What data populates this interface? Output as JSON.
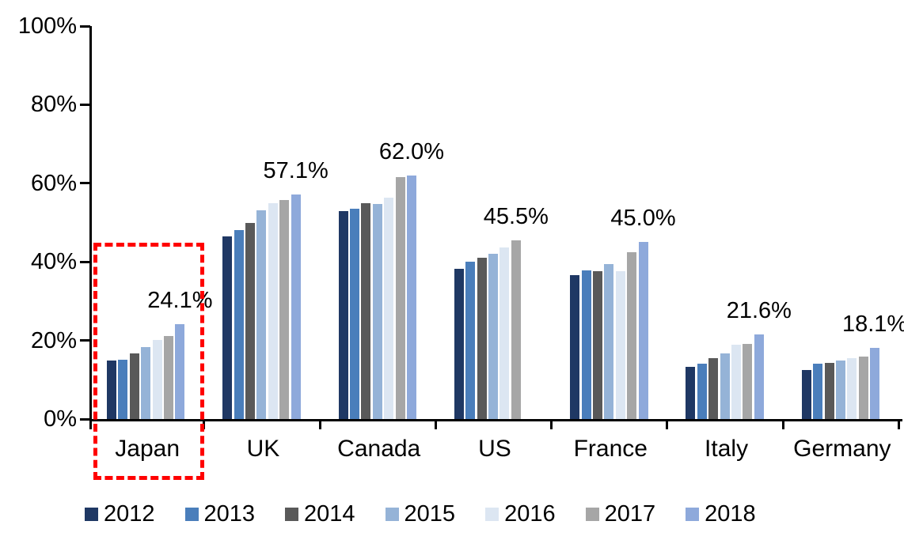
{
  "chart_data": {
    "type": "bar",
    "title": "",
    "xlabel": "",
    "ylabel": "",
    "categories": [
      "Japan",
      "UK",
      "Canada",
      "US",
      "France",
      "Italy",
      "Germany"
    ],
    "series": [
      {
        "name": "2012",
        "color": "#1F3864",
        "values": [
          14.8,
          46.5,
          53.0,
          38.2,
          36.6,
          13.3,
          12.5
        ]
      },
      {
        "name": "2013",
        "color": "#4A7EBB",
        "values": [
          15.0,
          48.0,
          53.5,
          40.0,
          37.8,
          14.1,
          14.0
        ]
      },
      {
        "name": "2014",
        "color": "#595959",
        "values": [
          16.8,
          50.0,
          55.0,
          41.0,
          37.7,
          15.4,
          14.3
        ]
      },
      {
        "name": "2015",
        "color": "#95B3D7",
        "values": [
          18.4,
          53.2,
          54.8,
          42.1,
          39.4,
          16.8,
          14.8
        ]
      },
      {
        "name": "2016",
        "color": "#DCE6F2",
        "values": [
          20.2,
          54.9,
          56.3,
          43.6,
          37.6,
          19.0,
          15.4
        ]
      },
      {
        "name": "2017",
        "color": "#A6A6A6",
        "values": [
          21.2,
          55.8,
          61.5,
          45.5,
          42.4,
          19.2,
          15.8
        ]
      },
      {
        "name": "2018",
        "color": "#8EA9DB",
        "values": [
          24.1,
          57.1,
          62.0,
          null,
          45.0,
          21.6,
          18.1
        ]
      }
    ],
    "data_labels": [
      "24.1%",
      "57.1%",
      "62.0%",
      "45.5%",
      "45.0%",
      "21.6%",
      "18.1%"
    ],
    "y_axis": {
      "min": 0,
      "max": 100,
      "tick_step": 20,
      "ticks": [
        "0%",
        "20%",
        "40%",
        "60%",
        "80%",
        "100%"
      ]
    },
    "grid": false,
    "legend_position": "bottom",
    "annotations": [
      {
        "type": "highlight-box",
        "target": "Japan",
        "color": "#FF0000",
        "style": "dashed"
      }
    ]
  }
}
